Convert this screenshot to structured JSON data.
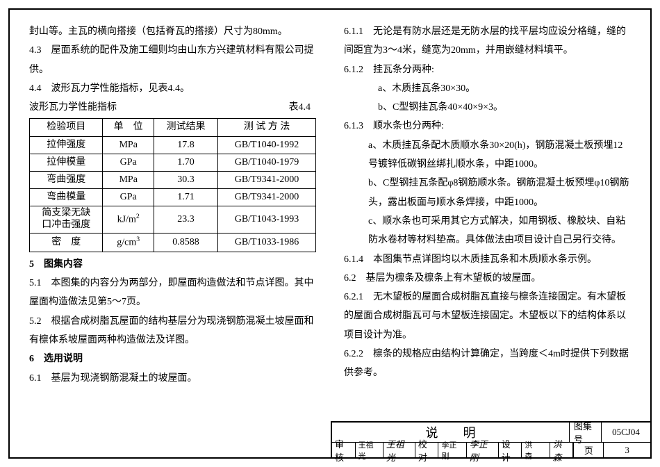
{
  "left": {
    "p1": "封山等。主瓦的横向搭接（包括脊瓦的搭接）尺寸为80mm。",
    "p2": "4.3　屋面系统的配件及施工细则均由山东方兴建筑材料有限公司提供。",
    "p3": "4.4　波形瓦力学性能指标，见表4.4。",
    "tableTitle": "波形瓦力学性能指标",
    "tableNum": "表4.4",
    "headers": [
      "检验项目",
      "单　位",
      "测试结果",
      "测 试 方 法"
    ],
    "rows": [
      [
        "拉伸强度",
        "MPa",
        "17.8",
        "GB/T1040-1992"
      ],
      [
        "拉伸模量",
        "GPa",
        "1.70",
        "GB/T1040-1979"
      ],
      [
        "弯曲强度",
        "MPa",
        "30.3",
        "GB/T9341-2000"
      ],
      [
        "弯曲模量",
        "GPa",
        "1.71",
        "GB/T9341-2000"
      ],
      [
        "简支梁无缺\n口冲击强度",
        "kJ/m²",
        "23.3",
        "GB/T1043-1993"
      ],
      [
        "密　度",
        "g/cm³",
        "0.8588",
        "GB/T1033-1986"
      ]
    ],
    "sec5": "5　图集内容",
    "p5_1": "5.1　本图集的内容分为两部分，即屋面构造做法和节点详图。其中屋面构造做法见第5～7页。",
    "p5_2": "5.2　根据合成树脂瓦屋面的结构基层分为现浇钢筋混凝土坡屋面和有檩体系坡屋面两种构造做法及详图。",
    "sec6": "6　选用说明",
    "p6_1": "6.1　基层为现浇钢筋混凝土的坡屋面。"
  },
  "right": {
    "p1": "6.1.1　无论是有防水层还是无防水层的找平层均应设分格缝，缝的间距宜为3～4米，缝宽为20mm，并用嵌缝材料填平。",
    "p2": "6.1.2　挂瓦条分两种:",
    "p2a": "a、木质挂瓦条30×30。",
    "p2b": "b、C型钢挂瓦条40×40×9×3。",
    "p3": "6.1.3　顺水条也分两种:",
    "p3a": "a、木质挂瓦条配木质顺水条30×20(h)，钢筋混凝土板预埋12号镀锌低碳钢丝绑扎顺水条，中距1000。",
    "p3b": "b、C型钢挂瓦条配φ8钢筋顺水条。钢筋混凝土板预埋φ10钢筋头，露出板面与顺水条焊接，中距1000。",
    "p3c": "c、顺水条也可采用其它方式解决，如用钢板、橡胶块、自粘防水卷材等材料垫高。具体做法由项目设计自己另行交待。",
    "p4": "6.1.4　本图集节点详图均以木质挂瓦条和木质顺水条示例。",
    "p5": "6.2　基层为檩条及檩条上有木望板的坡屋面。",
    "p6": "6.2.1　无木望板的屋面合成树脂瓦直接与檩条连接固定。有木望板的屋面合成树脂瓦可与木望板连接固定。木望板以下的结构体系以项目设计为准。",
    "p7": "6.2.2　檩条的规格应由结构计算确定，当跨度＜4m时提供下列数据供参考。"
  },
  "titleBlock": {
    "title": "说明",
    "albumLabel": "图集号",
    "albumNum": "05CJ04",
    "审核": "审核",
    "审核name": "王祖光",
    "审核sig": "王祖光",
    "校对": "校对",
    "校对name": "李正刚",
    "校对sig": "李正刚",
    "设计": "设计",
    "设计name": "洪　森",
    "设计sig": "洪森",
    "pageLabel": "页",
    "pageNum": "3"
  }
}
